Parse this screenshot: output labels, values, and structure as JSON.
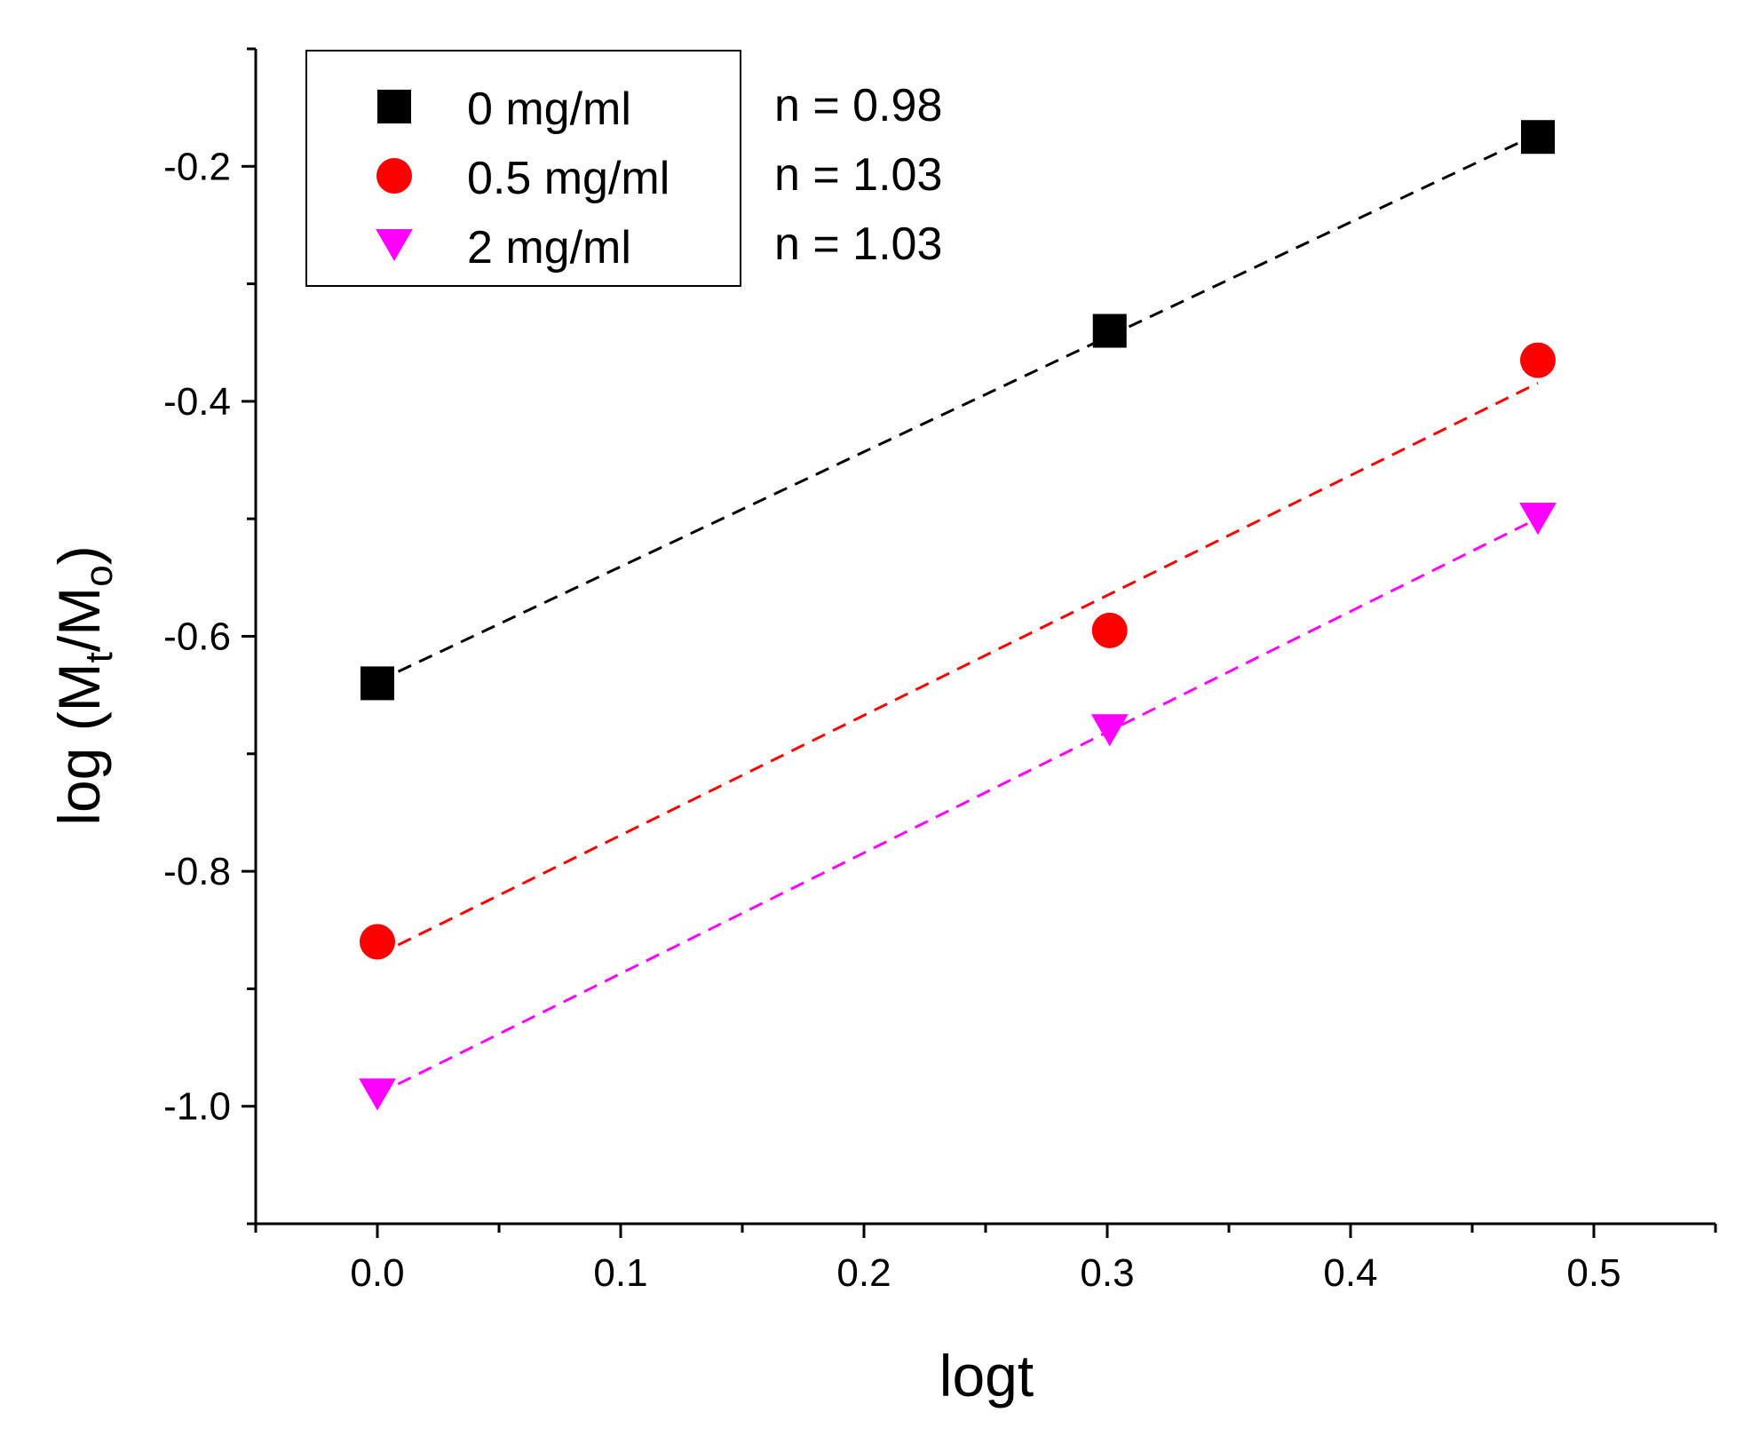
{
  "chart_data": {
    "type": "scatter",
    "xlabel": "logt",
    "ylabel": {
      "prefix": "log (M",
      "sub1": "t",
      "mid": "/M",
      "sub2": "o",
      "suffix": ")"
    },
    "xlim": [
      -0.05,
      0.55
    ],
    "ylim": [
      -1.1,
      -0.1
    ],
    "x_ticks": [
      0.0,
      0.1,
      0.2,
      0.3,
      0.4,
      0.5
    ],
    "x_tick_labels": [
      "0.0",
      "0.1",
      "0.2",
      "0.3",
      "0.4",
      "0.5"
    ],
    "y_ticks": [
      -1.0,
      -0.8,
      -0.6,
      -0.4,
      -0.2
    ],
    "y_tick_labels": [
      "-1.0",
      "-0.8",
      "-0.6",
      "-0.4",
      "-0.2"
    ],
    "grid": false,
    "legend_position": "top-left",
    "series": [
      {
        "name": "0 mg/ml",
        "marker": "square",
        "color": "#000000",
        "fit": "dashed",
        "x": [
          0.0,
          0.301,
          0.477
        ],
        "y": [
          -0.64,
          -0.34,
          -0.175
        ],
        "annotation": "n = 0.98"
      },
      {
        "name": "0.5 mg/ml",
        "marker": "circle",
        "color": "#ff0000",
        "fit": "dashed",
        "x": [
          0.0,
          0.301,
          0.477
        ],
        "y": [
          -0.86,
          -0.595,
          -0.365
        ],
        "annotation": "n = 1.03"
      },
      {
        "name": "2 mg/ml",
        "marker": "triangle-down",
        "color": "#ff00ff",
        "fit": "dashed",
        "x": [
          0.0,
          0.301,
          0.477
        ],
        "y": [
          -0.99,
          -0.68,
          -0.5
        ],
        "annotation": "n = 1.03"
      }
    ]
  }
}
